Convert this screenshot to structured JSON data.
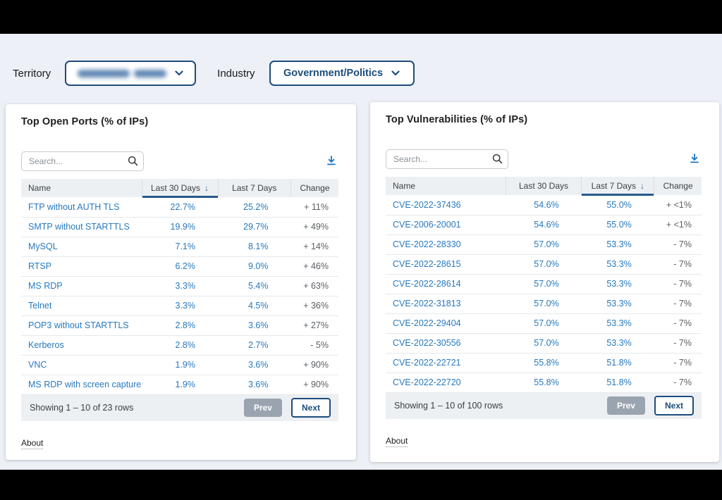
{
  "filters": {
    "territory_label": "Territory",
    "territory_value_redacted": true,
    "industry_label": "Industry",
    "industry_value": "Government/Politics"
  },
  "icons": {
    "sort_desc_glyph": "↓",
    "search": "magnifier",
    "download": "arrow-down-to-line",
    "chevron": "chevron-down"
  },
  "colors": {
    "accent_navy": "#1d4d7c",
    "sort_underline": "#255a8c",
    "link_blue": "#2779bd",
    "change_gray": "#5b6065",
    "header_row_bg": "#edf0f3",
    "prev_button_bg": "#9aa4b0",
    "download_blue": "#1a73c8",
    "page_bg": "#edf0f6",
    "letterbox": "#000000"
  },
  "panels": [
    {
      "title": "Top Open Ports (% of IPs)",
      "search_placeholder": "Search...",
      "columns": [
        {
          "label": "Name"
        },
        {
          "label": "Last 30 Days",
          "sorted": "desc"
        },
        {
          "label": "Last 7 Days"
        },
        {
          "label": "Change"
        }
      ],
      "rows": [
        [
          "FTP without AUTH TLS",
          "22.7%",
          "25.2%",
          "+ 11%"
        ],
        [
          "SMTP without STARTTLS",
          "19.9%",
          "29.7%",
          "+ 49%"
        ],
        [
          "MySQL",
          "7.1%",
          "8.1%",
          "+ 14%"
        ],
        [
          "RTSP",
          "6.2%",
          "9.0%",
          "+ 46%"
        ],
        [
          "MS RDP",
          "3.3%",
          "5.4%",
          "+ 63%"
        ],
        [
          "Telnet",
          "3.3%",
          "4.5%",
          "+ 36%"
        ],
        [
          "POP3 without STARTTLS",
          "2.8%",
          "3.6%",
          "+ 27%"
        ],
        [
          "Kerberos",
          "2.8%",
          "2.7%",
          "- 5%"
        ],
        [
          "VNC",
          "1.9%",
          "3.6%",
          "+ 90%"
        ],
        [
          "MS RDP with screen capture",
          "1.9%",
          "3.6%",
          "+ 90%"
        ]
      ],
      "footer": {
        "showing": "Showing 1 – 10 of 23 rows",
        "prev": "Prev",
        "next": "Next"
      },
      "about": "About"
    },
    {
      "title": "Top Vulnerabilities (% of IPs)",
      "search_placeholder": "Search...",
      "columns": [
        {
          "label": "Name"
        },
        {
          "label": "Last 30 Days"
        },
        {
          "label": "Last 7 Days",
          "sorted": "desc"
        },
        {
          "label": "Change"
        }
      ],
      "rows": [
        [
          "CVE-2022-37436",
          "54.6%",
          "55.0%",
          "+ <1%"
        ],
        [
          "CVE-2006-20001",
          "54.6%",
          "55.0%",
          "+ <1%"
        ],
        [
          "CVE-2022-28330",
          "57.0%",
          "53.3%",
          "- 7%"
        ],
        [
          "CVE-2022-28615",
          "57.0%",
          "53.3%",
          "- 7%"
        ],
        [
          "CVE-2022-28614",
          "57.0%",
          "53.3%",
          "- 7%"
        ],
        [
          "CVE-2022-31813",
          "57.0%",
          "53.3%",
          "- 7%"
        ],
        [
          "CVE-2022-29404",
          "57.0%",
          "53.3%",
          "- 7%"
        ],
        [
          "CVE-2022-30556",
          "57.0%",
          "53.3%",
          "- 7%"
        ],
        [
          "CVE-2022-22721",
          "55.8%",
          "51.8%",
          "- 7%"
        ],
        [
          "CVE-2022-22720",
          "55.8%",
          "51.8%",
          "- 7%"
        ]
      ],
      "footer": {
        "showing": "Showing 1 – 10 of 100 rows",
        "prev": "Prev",
        "next": "Next"
      },
      "about": "About"
    }
  ]
}
